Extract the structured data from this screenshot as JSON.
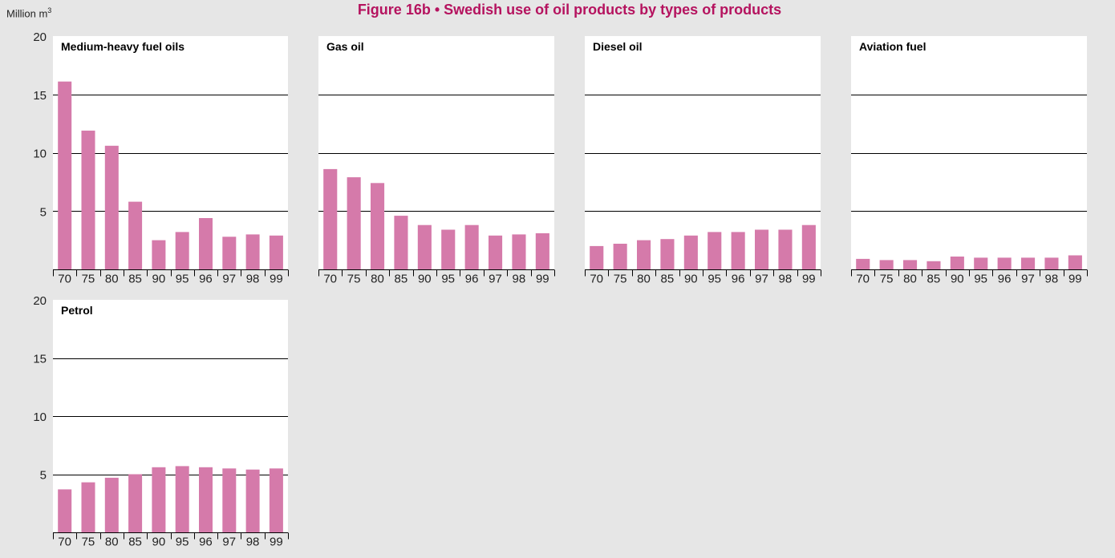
{
  "title": "Figure 16b • Swedish use of oil products by types of products",
  "unit_label": "Million m",
  "unit_superscript": "3",
  "colors": {
    "bar": "#d57aaa",
    "title": "#b5135f",
    "background": "#e6e6e6",
    "panel": "#ffffff"
  },
  "chart_data": [
    {
      "type": "bar",
      "title": "Medium-heavy fuel oils",
      "categories": [
        "70",
        "75",
        "80",
        "85",
        "90",
        "95",
        "96",
        "97",
        "98",
        "99"
      ],
      "values": [
        16.1,
        11.9,
        10.6,
        5.8,
        2.5,
        3.2,
        4.4,
        2.8,
        3.0,
        2.9
      ],
      "ylim": [
        0,
        20
      ],
      "yticks": [
        5,
        10,
        15,
        20
      ],
      "grid": true
    },
    {
      "type": "bar",
      "title": "Gas oil",
      "categories": [
        "70",
        "75",
        "80",
        "85",
        "90",
        "95",
        "96",
        "97",
        "98",
        "99"
      ],
      "values": [
        8.6,
        7.9,
        7.4,
        4.6,
        3.8,
        3.4,
        3.8,
        2.9,
        3.0,
        3.1
      ],
      "ylim": [
        0,
        20
      ],
      "yticks": [
        5,
        10,
        15,
        20
      ],
      "grid": true
    },
    {
      "type": "bar",
      "title": "Diesel oil",
      "categories": [
        "70",
        "75",
        "80",
        "85",
        "90",
        "95",
        "96",
        "97",
        "98",
        "99"
      ],
      "values": [
        2.0,
        2.2,
        2.5,
        2.6,
        2.9,
        3.2,
        3.2,
        3.4,
        3.4,
        3.8
      ],
      "ylim": [
        0,
        20
      ],
      "yticks": [
        5,
        10,
        15,
        20
      ],
      "grid": true
    },
    {
      "type": "bar",
      "title": "Aviation fuel",
      "categories": [
        "70",
        "75",
        "80",
        "85",
        "90",
        "95",
        "96",
        "97",
        "98",
        "99"
      ],
      "values": [
        0.9,
        0.8,
        0.8,
        0.7,
        1.1,
        1.0,
        1.0,
        1.0,
        1.0,
        1.2
      ],
      "ylim": [
        0,
        20
      ],
      "yticks": [
        5,
        10,
        15,
        20
      ],
      "grid": true
    },
    {
      "type": "bar",
      "title": "Petrol",
      "categories": [
        "70",
        "75",
        "80",
        "85",
        "90",
        "95",
        "96",
        "97",
        "98",
        "99"
      ],
      "values": [
        3.7,
        4.3,
        4.7,
        5.0,
        5.6,
        5.7,
        5.6,
        5.5,
        5.4,
        5.5
      ],
      "ylim": [
        0,
        20
      ],
      "yticks": [
        5,
        10,
        15,
        20
      ],
      "grid": true
    }
  ]
}
